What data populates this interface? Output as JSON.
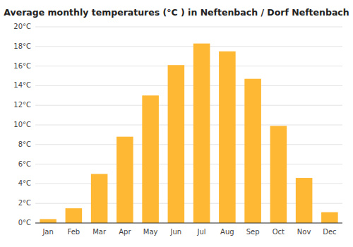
{
  "chart_data": {
    "type": "bar",
    "title": "Average monthly temperatures (°C ) in Neftenbach / Dorf Neftenbach",
    "categories": [
      "Jan",
      "Feb",
      "Mar",
      "Apr",
      "May",
      "Jun",
      "Jul",
      "Aug",
      "Sep",
      "Oct",
      "Nov",
      "Dec"
    ],
    "values": [
      0.4,
      1.5,
      5.0,
      8.8,
      13.0,
      16.1,
      18.3,
      17.5,
      14.7,
      9.9,
      4.6,
      1.1
    ],
    "color": "#FFB833",
    "ylim": [
      0,
      20
    ],
    "yticks": [
      {
        "value": 0,
        "label": "0°C"
      },
      {
        "value": 2,
        "label": "2°C"
      },
      {
        "value": 4,
        "label": "4°C"
      },
      {
        "value": 6,
        "label": "6°C"
      },
      {
        "value": 8,
        "label": "8°C"
      },
      {
        "value": 10,
        "label": "10°C"
      },
      {
        "value": 12,
        "label": "12°C"
      },
      {
        "value": 14,
        "label": "14°C"
      },
      {
        "value": 16,
        "label": "16°C"
      },
      {
        "value": 18,
        "label": "18°C"
      },
      {
        "value": 20,
        "label": "20°C"
      }
    ],
    "grid": true
  }
}
